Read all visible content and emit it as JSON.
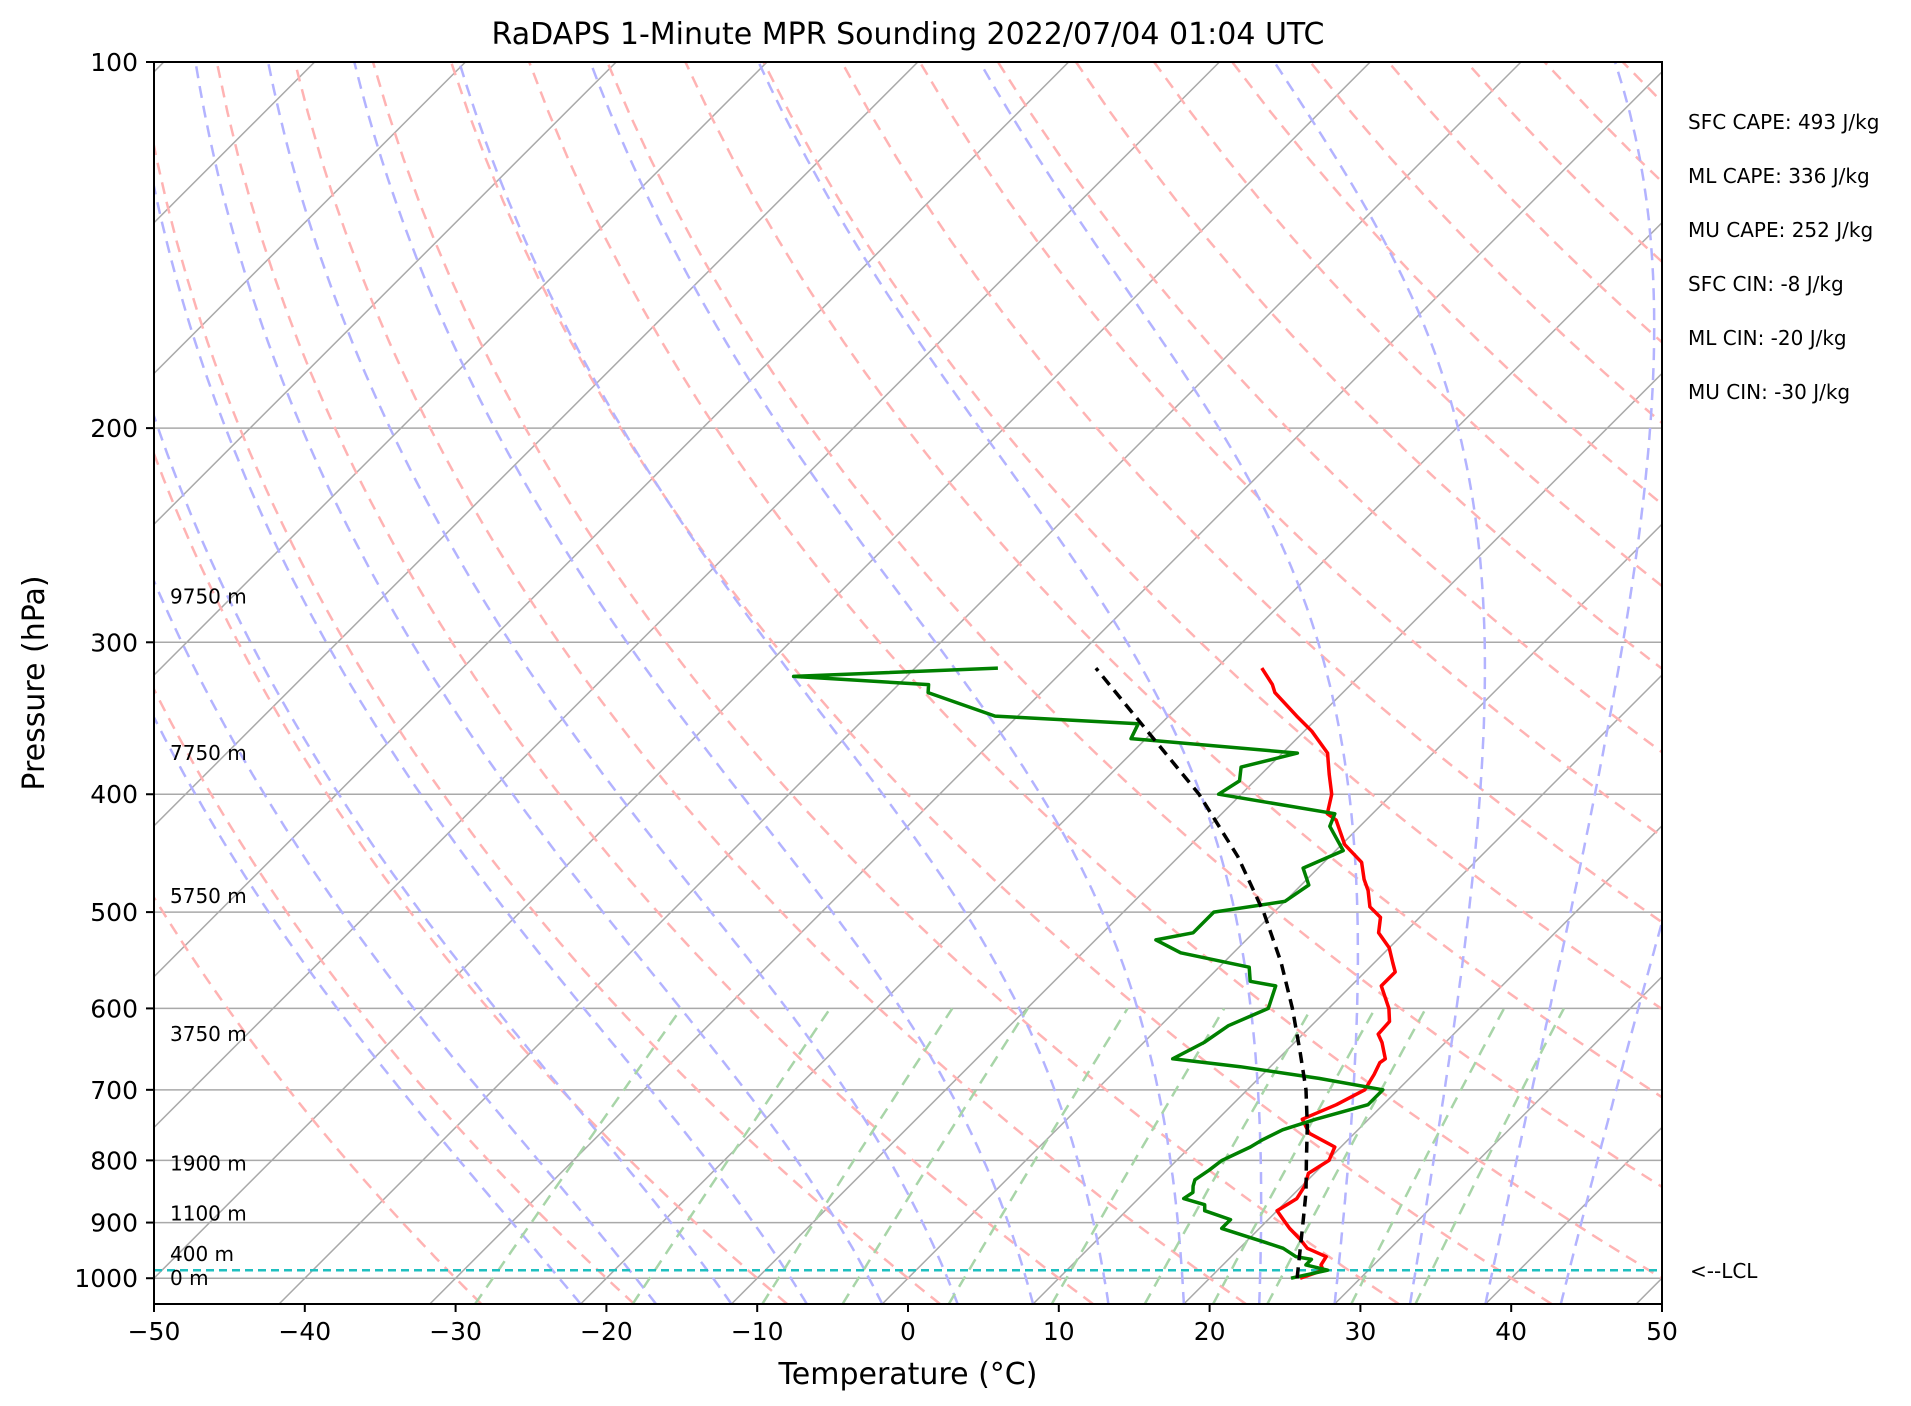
{
  "chart_data": {
    "type": "line",
    "title": "RaDAPS 1-Minute MPR Sounding 2022/07/04 01:04 UTC",
    "xlabel": "Temperature (°C)",
    "ylabel": "Pressure (hPa)",
    "xlim": [
      -50,
      50
    ],
    "ylim": [
      1050,
      100
    ],
    "y_scale": "log",
    "skew": "skew-T",
    "x_ticks": [
      -50,
      -40,
      -30,
      -20,
      -10,
      0,
      10,
      20,
      30,
      40,
      50
    ],
    "x_tick_labels": [
      "−50",
      "−40",
      "−30",
      "−20",
      "−10",
      "0",
      "10",
      "20",
      "30",
      "40",
      "50"
    ],
    "y_ticks": [
      100,
      200,
      300,
      400,
      500,
      600,
      700,
      800,
      900,
      1000
    ],
    "y_tick_labels": [
      "100",
      "200",
      "300",
      "400",
      "500",
      "600",
      "700",
      "800",
      "900",
      "1000"
    ],
    "grid": true,
    "series": [
      {
        "key": "temperature",
        "color": "#ff0000",
        "points": [
          [
            1000,
            26.0
          ],
          [
            985,
            27.0
          ],
          [
            975,
            26.5
          ],
          [
            960,
            26.3
          ],
          [
            945,
            24.5
          ],
          [
            930,
            23.5
          ],
          [
            910,
            22.0
          ],
          [
            895,
            21.0
          ],
          [
            880,
            20.0
          ],
          [
            860,
            20.5
          ],
          [
            840,
            20.2
          ],
          [
            820,
            19.6
          ],
          [
            800,
            20.1
          ],
          [
            780,
            19.6
          ],
          [
            760,
            17.0
          ],
          [
            740,
            15.6
          ],
          [
            720,
            16.9
          ],
          [
            700,
            17.8
          ],
          [
            680,
            17.4
          ],
          [
            665,
            17.0
          ],
          [
            660,
            17.1
          ],
          [
            640,
            15.8
          ],
          [
            630,
            15.0
          ],
          [
            615,
            14.9
          ],
          [
            600,
            14.0
          ],
          [
            575,
            12.0
          ],
          [
            560,
            12.0
          ],
          [
            550,
            11.2
          ],
          [
            535,
            10.0
          ],
          [
            520,
            8.3
          ],
          [
            505,
            7.4
          ],
          [
            495,
            6.0
          ],
          [
            480,
            4.8
          ],
          [
            470,
            3.8
          ],
          [
            455,
            2.5
          ],
          [
            440,
            0.2
          ],
          [
            420,
            -2.0
          ],
          [
            415,
            -3.0
          ],
          [
            400,
            -4.0
          ],
          [
            385,
            -5.5
          ],
          [
            375,
            -6.5
          ],
          [
            370,
            -7.0
          ],
          [
            355,
            -9.5
          ],
          [
            345,
            -11.5
          ],
          [
            330,
            -14.5
          ],
          [
            325,
            -15.2
          ],
          [
            315,
            -17.0
          ]
        ]
      },
      {
        "key": "dewpoint",
        "color": "#008000",
        "points": [
          [
            1000,
            25.4
          ],
          [
            985,
            27.3
          ],
          [
            975,
            25.5
          ],
          [
            965,
            25.5
          ],
          [
            960,
            24.3
          ],
          [
            945,
            22.9
          ],
          [
            935,
            21.4
          ],
          [
            910,
            17.5
          ],
          [
            895,
            17.5
          ],
          [
            880,
            15.2
          ],
          [
            870,
            14.8
          ],
          [
            860,
            13.0
          ],
          [
            850,
            13.2
          ],
          [
            840,
            12.8
          ],
          [
            830,
            12.5
          ],
          [
            815,
            12.8
          ],
          [
            800,
            13.0
          ],
          [
            780,
            14.0
          ],
          [
            770,
            14.3
          ],
          [
            755,
            15.0
          ],
          [
            740,
            16.5
          ],
          [
            720,
            19.0
          ],
          [
            700,
            19.0
          ],
          [
            685,
            14.0
          ],
          [
            670,
            8.0
          ],
          [
            660,
            3.0
          ],
          [
            640,
            4.0
          ],
          [
            620,
            4.5
          ],
          [
            600,
            6.0
          ],
          [
            575,
            5.0
          ],
          [
            570,
            3.0
          ],
          [
            555,
            2.0
          ],
          [
            540,
            -3.5
          ],
          [
            527,
            -6.0
          ],
          [
            520,
            -4.0
          ],
          [
            500,
            -4.0
          ],
          [
            490,
            0.0
          ],
          [
            475,
            0.5
          ],
          [
            460,
            -1.0
          ],
          [
            445,
            0.5
          ],
          [
            425,
            -2.0
          ],
          [
            415,
            -2.5
          ],
          [
            400,
            -11.5
          ],
          [
            390,
            -11.0
          ],
          [
            380,
            -11.8
          ],
          [
            370,
            -9.0
          ],
          [
            360,
            -21.0
          ],
          [
            350,
            -21.5
          ],
          [
            345,
            -31.5
          ],
          [
            330,
            -37.5
          ],
          [
            325,
            -38.0
          ],
          [
            320,
            -47.5
          ],
          [
            315,
            -34.5
          ]
        ]
      },
      {
        "key": "parcel",
        "color": "#000000",
        "dashed": true,
        "points": [
          [
            1000,
            25.8
          ],
          [
            950,
            24.2
          ],
          [
            900,
            22.5
          ],
          [
            850,
            20.7
          ],
          [
            800,
            18.6
          ],
          [
            750,
            16.4
          ],
          [
            700,
            13.9
          ],
          [
            650,
            10.9
          ],
          [
            600,
            7.6
          ],
          [
            550,
            3.8
          ],
          [
            500,
            -0.7
          ],
          [
            450,
            -6.1
          ],
          [
            400,
            -12.8
          ],
          [
            350,
            -21.3
          ],
          [
            315,
            -28.0
          ]
        ]
      }
    ],
    "lcl_pressure": 985,
    "lcl_label": "<--LCL",
    "height_labels": [
      {
        "text": "0 m",
        "pressure": 1000
      },
      {
        "text": "400 m",
        "pressure": 955
      },
      {
        "text": "1100 m",
        "pressure": 885
      },
      {
        "text": "1900 m",
        "pressure": 805
      },
      {
        "text": "3750 m",
        "pressure": 630
      },
      {
        "text": "5750 m",
        "pressure": 485
      },
      {
        "text": "7750 m",
        "pressure": 370
      },
      {
        "text": "9750 m",
        "pressure": 275
      }
    ],
    "stats": [
      "SFC CAPE: 493 J/kg",
      "ML CAPE: 336 J/kg",
      "MU CAPE: 252 J/kg",
      "SFC CIN: -8 J/kg",
      "ML CIN: -20 J/kg",
      "MU CIN: -30 J/kg"
    ],
    "background_colors": {
      "isotherm": "#a9a9a9",
      "dry_adiabat": "#ffb3b3",
      "moist_adiabat": "#b3b3ff",
      "mixing_ratio": "#a8d5a8",
      "lcl_line": "#1fbfbf"
    }
  }
}
